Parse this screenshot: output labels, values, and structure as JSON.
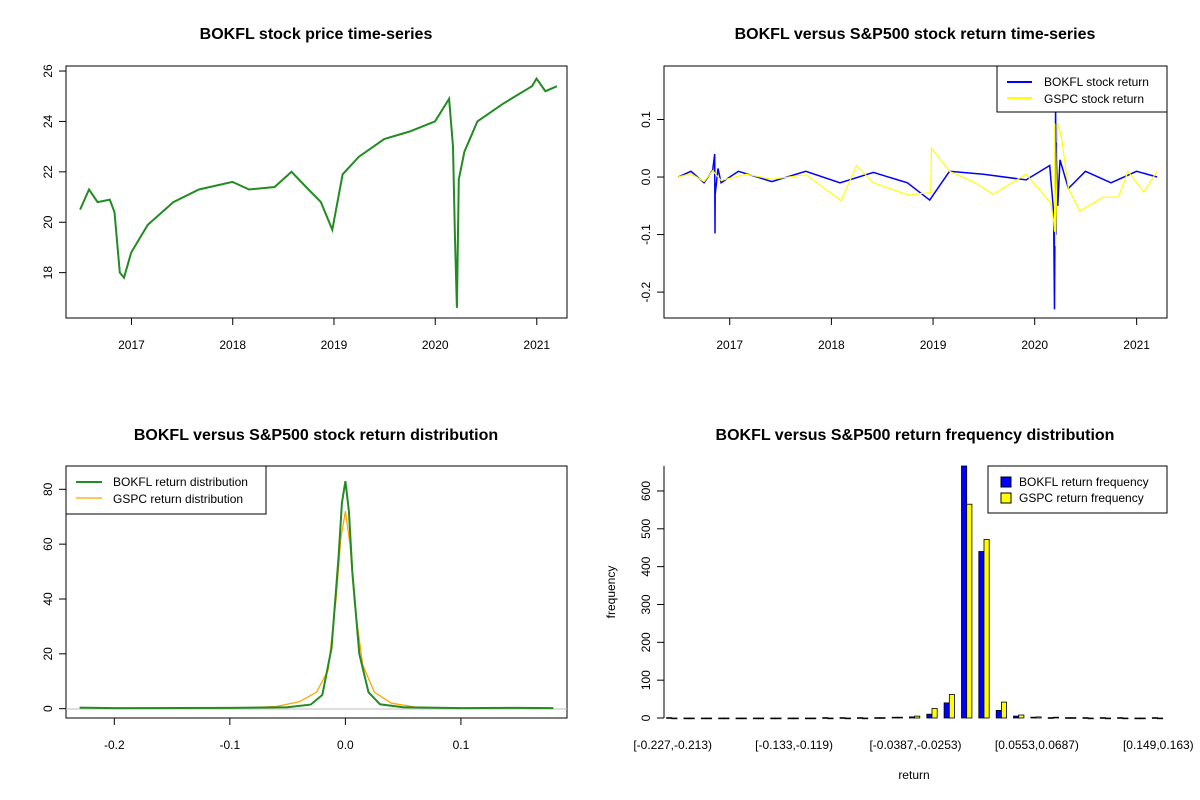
{
  "chart_data": [
    {
      "type": "line",
      "title": "BOKFL stock price time-series",
      "xlabel": "",
      "ylabel": "",
      "x_ticks": [
        "2017",
        "2018",
        "2019",
        "2020",
        "2021"
      ],
      "y_ticks": [
        "18",
        "20",
        "22",
        "24",
        "26"
      ],
      "xlim": [
        "2016-05-10",
        "2021-04-20"
      ],
      "ylim": [
        16.2,
        26.2
      ],
      "series": [
        {
          "color": "#228B22",
          "x": [
            "2016-06-30",
            "2016-08-01",
            "2016-09-01",
            "2016-10-15",
            "2016-11-01",
            "2016-11-20",
            "2016-12-05",
            "2016-12-31",
            "2017-03-01",
            "2017-06-01",
            "2017-09-01",
            "2017-12-31",
            "2018-03-01",
            "2018-06-01",
            "2018-08-01",
            "2018-10-01",
            "2018-11-15",
            "2018-12-26",
            "2019-02-01",
            "2019-04-01",
            "2019-07-01",
            "2019-10-01",
            "2019-12-31",
            "2020-02-20",
            "2020-03-05",
            "2020-03-12",
            "2020-03-19",
            "2020-03-26",
            "2020-04-15",
            "2020-06-01",
            "2020-09-01",
            "2020-12-15",
            "2020-12-31",
            "2021-02-01",
            "2021-03-15"
          ],
          "y": [
            20.5,
            21.3,
            20.8,
            20.9,
            20.4,
            18.0,
            17.8,
            18.8,
            19.9,
            20.8,
            21.3,
            21.6,
            21.3,
            21.4,
            22.0,
            21.3,
            20.8,
            19.7,
            21.9,
            22.6,
            23.3,
            23.6,
            24.0,
            24.9,
            23.0,
            19.5,
            16.6,
            21.7,
            22.8,
            24.0,
            24.7,
            25.4,
            25.7,
            25.2,
            25.4
          ]
        }
      ]
    },
    {
      "type": "line",
      "title": "BOKFL versus S&P500 stock return time-series",
      "xlabel": "",
      "ylabel": "",
      "x_ticks": [
        "2017",
        "2018",
        "2019",
        "2020",
        "2021"
      ],
      "y_ticks": [
        "-0.2",
        "-0.1",
        "0.0",
        "0.1"
      ],
      "xlim": [
        "2016-05-10",
        "2021-04-20"
      ],
      "ylim": [
        -0.245,
        0.193
      ],
      "legend": {
        "position": "top-right",
        "entries": [
          "BOKFL stock return",
          "GSPC stock return"
        ]
      },
      "series": [
        {
          "name": "BOKFL stock return",
          "color": "#0000FF",
          "x": [
            "2016-06-30",
            "2016-08-15",
            "2016-10-01",
            "2016-11-01",
            "2016-11-08",
            "2016-11-09",
            "2016-11-10",
            "2016-11-20",
            "2016-12-01",
            "2017-02-01",
            "2017-06-01",
            "2017-10-01",
            "2018-02-01",
            "2018-06-01",
            "2018-10-01",
            "2018-12-20",
            "2019-03-01",
            "2019-07-01",
            "2019-12-01",
            "2020-02-24",
            "2020-03-09",
            "2020-03-12",
            "2020-03-16",
            "2020-03-18",
            "2020-03-20",
            "2020-03-24",
            "2020-04-01",
            "2020-05-01",
            "2020-07-01",
            "2020-10-01",
            "2021-01-01",
            "2021-03-15"
          ],
          "y": [
            0.0,
            0.01,
            -0.01,
            0.012,
            0.04,
            -0.098,
            -0.03,
            0.015,
            -0.01,
            0.01,
            -0.008,
            0.01,
            -0.01,
            0.008,
            -0.01,
            -0.04,
            0.01,
            0.005,
            -0.005,
            0.02,
            -0.06,
            -0.23,
            0.12,
            -0.1,
            0.06,
            -0.05,
            0.03,
            -0.02,
            0.01,
            -0.01,
            0.01,
            0.0
          ]
        },
        {
          "name": "GSPC stock return",
          "color": "#FFFF00",
          "x": [
            "2016-06-30",
            "2016-08-15",
            "2016-10-01",
            "2016-11-01",
            "2016-12-01",
            "2017-03-01",
            "2017-06-01",
            "2017-10-01",
            "2018-02-05",
            "2018-02-08",
            "2018-04-01",
            "2018-06-01",
            "2018-10-10",
            "2018-10-24",
            "2018-12-24",
            "2018-12-26",
            "2019-03-01",
            "2019-06-01",
            "2019-08-05",
            "2019-12-01",
            "2020-02-27",
            "2020-03-09",
            "2020-03-12",
            "2020-03-13",
            "2020-03-16",
            "2020-03-24",
            "2020-04-06",
            "2020-05-01",
            "2020-06-11",
            "2020-09-03",
            "2020-10-28",
            "2020-12-01",
            "2021-01-27",
            "2021-03-15"
          ],
          "y": [
            0.0,
            0.006,
            -0.008,
            0.011,
            -0.006,
            0.005,
            -0.004,
            0.004,
            -0.041,
            -0.038,
            0.02,
            -0.01,
            -0.032,
            -0.03,
            -0.027,
            0.05,
            0.01,
            -0.01,
            -0.03,
            0.005,
            -0.045,
            -0.076,
            -0.095,
            0.093,
            -0.12,
            0.094,
            0.07,
            -0.02,
            -0.059,
            -0.035,
            -0.035,
            0.01,
            -0.026,
            0.01
          ]
        }
      ]
    },
    {
      "type": "line",
      "title": "BOKFL versus S&P500 stock return distribution",
      "xlabel": "",
      "ylabel": "",
      "x_ticks": [
        "-0.2",
        "-0.1",
        "0.0",
        "0.1"
      ],
      "y_ticks": [
        "0",
        "20",
        "40",
        "60",
        "80"
      ],
      "xlim": [
        -0.2418,
        0.1918
      ],
      "ylim": [
        -3.4,
        88.5
      ],
      "legend": {
        "position": "top-left",
        "entries": [
          "BOKFL return distribution",
          "GSPC return distribution"
        ]
      },
      "series": [
        {
          "name": "BOKFL return distribution",
          "color": "#228B22",
          "x": [
            -0.23,
            -0.2,
            -0.1,
            -0.05,
            -0.03,
            -0.02,
            -0.012,
            -0.006,
            -0.003,
            0.0,
            0.003,
            0.006,
            0.012,
            0.02,
            0.03,
            0.05,
            0.1,
            0.15,
            0.18
          ],
          "y": [
            0.4,
            0.2,
            0.3,
            0.5,
            1.5,
            5.0,
            22.0,
            55.0,
            75.0,
            83.0,
            72.0,
            50.0,
            20.0,
            6.0,
            1.6,
            0.5,
            0.2,
            0.3,
            0.2
          ]
        },
        {
          "name": "GSPC return distribution",
          "color": "#FFA500",
          "x": [
            -0.12,
            -0.09,
            -0.06,
            -0.04,
            -0.025,
            -0.015,
            -0.008,
            -0.004,
            0.0,
            0.004,
            0.008,
            0.015,
            0.025,
            0.04,
            0.06,
            0.09
          ],
          "y": [
            0.1,
            0.3,
            0.8,
            2.5,
            6.0,
            14.0,
            40.0,
            62.0,
            72.0,
            60.0,
            38.0,
            16.0,
            6.0,
            2.0,
            0.6,
            0.2
          ]
        }
      ]
    },
    {
      "type": "bar",
      "title": "BOKFL versus S&P500 return frequency distribution",
      "xlabel": "return",
      "ylabel": "frequency",
      "x_tick_labels": [
        "[-0.227,-0.213)",
        "[-0.133,-0.119)",
        "[-0.0387,-0.0253)",
        "[0.0553,0.0687)",
        "[0.149,0.163)"
      ],
      "y_ticks": [
        "0",
        "100",
        "200",
        "300",
        "400",
        "500",
        "600"
      ],
      "ylim": [
        0,
        666
      ],
      "legend": {
        "position": "top-right",
        "entries": [
          "BOKFL return frequency",
          "GSPC return frequency"
        ]
      },
      "bin_count": 29,
      "series": [
        {
          "name": "BOKFL return frequency",
          "color": "#0000FF",
          "values": [
            1,
            0,
            0,
            0,
            0,
            0,
            0,
            0,
            0,
            1,
            1,
            1,
            1,
            2,
            3,
            10,
            40,
            668,
            440,
            20,
            5,
            2,
            1,
            1,
            1,
            1,
            1,
            0,
            1
          ]
        },
        {
          "name": "GSPC return frequency",
          "color": "#FFFF00",
          "values": [
            0,
            0,
            0,
            0,
            0,
            0,
            0,
            0,
            0,
            0,
            0,
            0,
            1,
            2,
            5,
            25,
            62,
            565,
            472,
            42,
            8,
            3,
            2,
            1,
            0,
            0,
            0,
            0,
            0
          ]
        }
      ]
    }
  ]
}
